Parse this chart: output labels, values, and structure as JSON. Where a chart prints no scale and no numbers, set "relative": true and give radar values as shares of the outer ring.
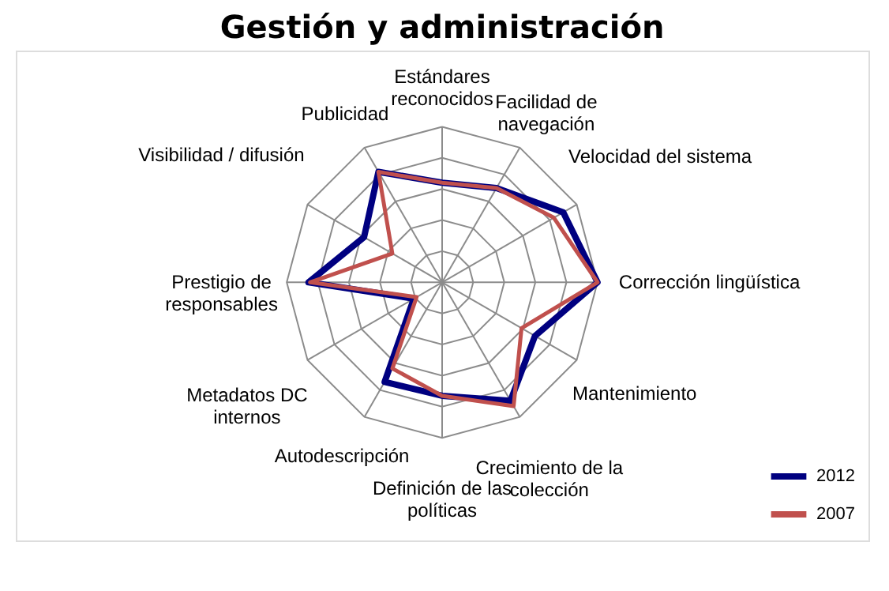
{
  "chart_data": {
    "type": "radar",
    "title": "Gestión y administración",
    "relative": true,
    "grid": true,
    "legend": "bottom right",
    "categories": [
      "Estándares\nreconocidos",
      "Facilidad de\nnavegación",
      "Velocidad del sistema",
      "Corrección lingüística",
      "Mantenimiento",
      "Crecimiento de la\ncolección",
      "Definición de las\npolíticas",
      "Autodescripción",
      "Metadatos DC\ninternos",
      "Prestigio de\nresponsables",
      "Visibilidad / difusión",
      "Publicidad"
    ],
    "series": [
      {
        "name": "2012",
        "color": "#000080",
        "values": [
          0.64,
          0.7,
          0.9,
          1.0,
          0.69,
          0.88,
          0.73,
          0.74,
          0.21,
          0.86,
          0.58,
          0.82
        ]
      },
      {
        "name": "2007",
        "color": "#c0504d",
        "values": [
          0.64,
          0.7,
          0.83,
          1.0,
          0.59,
          0.92,
          0.73,
          0.64,
          0.19,
          0.85,
          0.37,
          0.82
        ]
      }
    ]
  }
}
